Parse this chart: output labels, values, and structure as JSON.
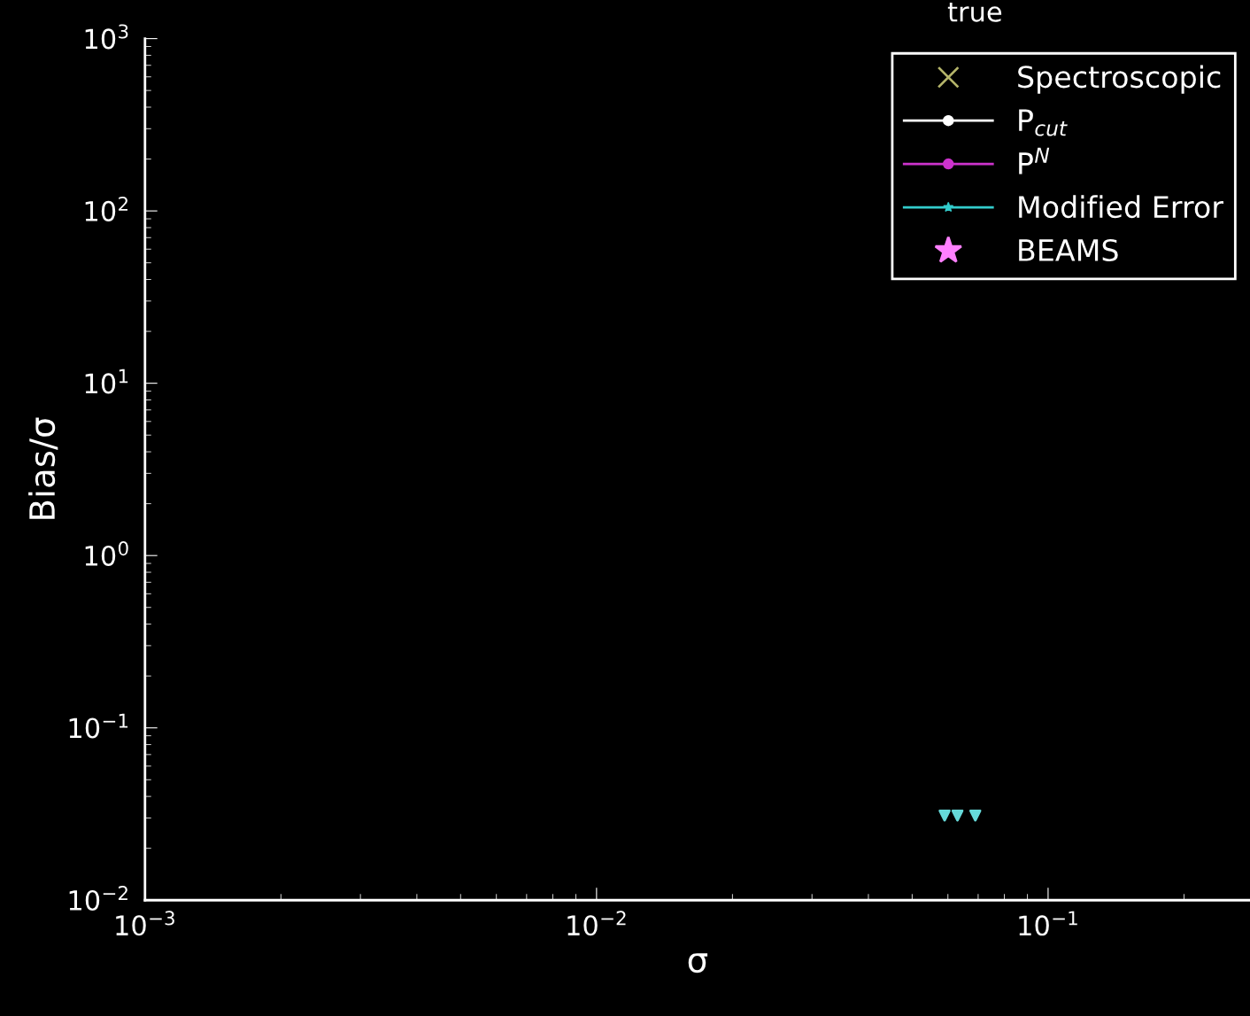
{
  "chart_data": {
    "type": "line",
    "xlabel": "σ",
    "ylabel": "Bias/σ",
    "annotations": [
      "true"
    ],
    "log": "xy",
    "legend": "top right",
    "grid": false,
    "xlim": [
      0.001,
      0.28
    ],
    "xticks": [
      {
        "value": 0.001,
        "label": "10$^{−3}$"
      },
      {
        "value": 0.01,
        "label": "10$^{−2}$"
      },
      {
        "value": 0.1,
        "label": "10$^{−1}$"
      }
    ],
    "ylim": [
      0.01,
      1000
    ],
    "yticks": [
      {
        "value": 0.01,
        "label": "10$^{−2}$"
      },
      {
        "value": 0.1,
        "label": "10$^{−1}$"
      },
      {
        "value": 1,
        "label": "10$^{0}$"
      },
      {
        "value": 10,
        "label": "10$^{1}$"
      },
      {
        "value": 100,
        "label": "10$^{2}$"
      },
      {
        "value": 1000,
        "label": "10$^{3}$"
      }
    ],
    "series": [
      {
        "name": "Spectroscopic",
        "color": "#b5b56a",
        "type": "scatter",
        "marker": "cross"
      },
      {
        "name": "P$_{cut}$",
        "color": "#ffffff",
        "marker": "circle"
      },
      {
        "name": "P$^{N}$",
        "color": "#cc33cc",
        "marker": "circle"
      },
      {
        "name": "Modified Error",
        "color": "#33cccc",
        "marker": "star"
      },
      {
        "name": "BEAMS",
        "color": "#ff80ff",
        "type": "scatter",
        "marker": "star"
      },
      {
        "color": "#66d9d9",
        "type": "scatter",
        "marker": "triangle",
        "x": [
          0.059,
          0.063,
          0.069
        ],
        "values": [
          0.031,
          0.031,
          0.031
        ]
      }
    ]
  }
}
